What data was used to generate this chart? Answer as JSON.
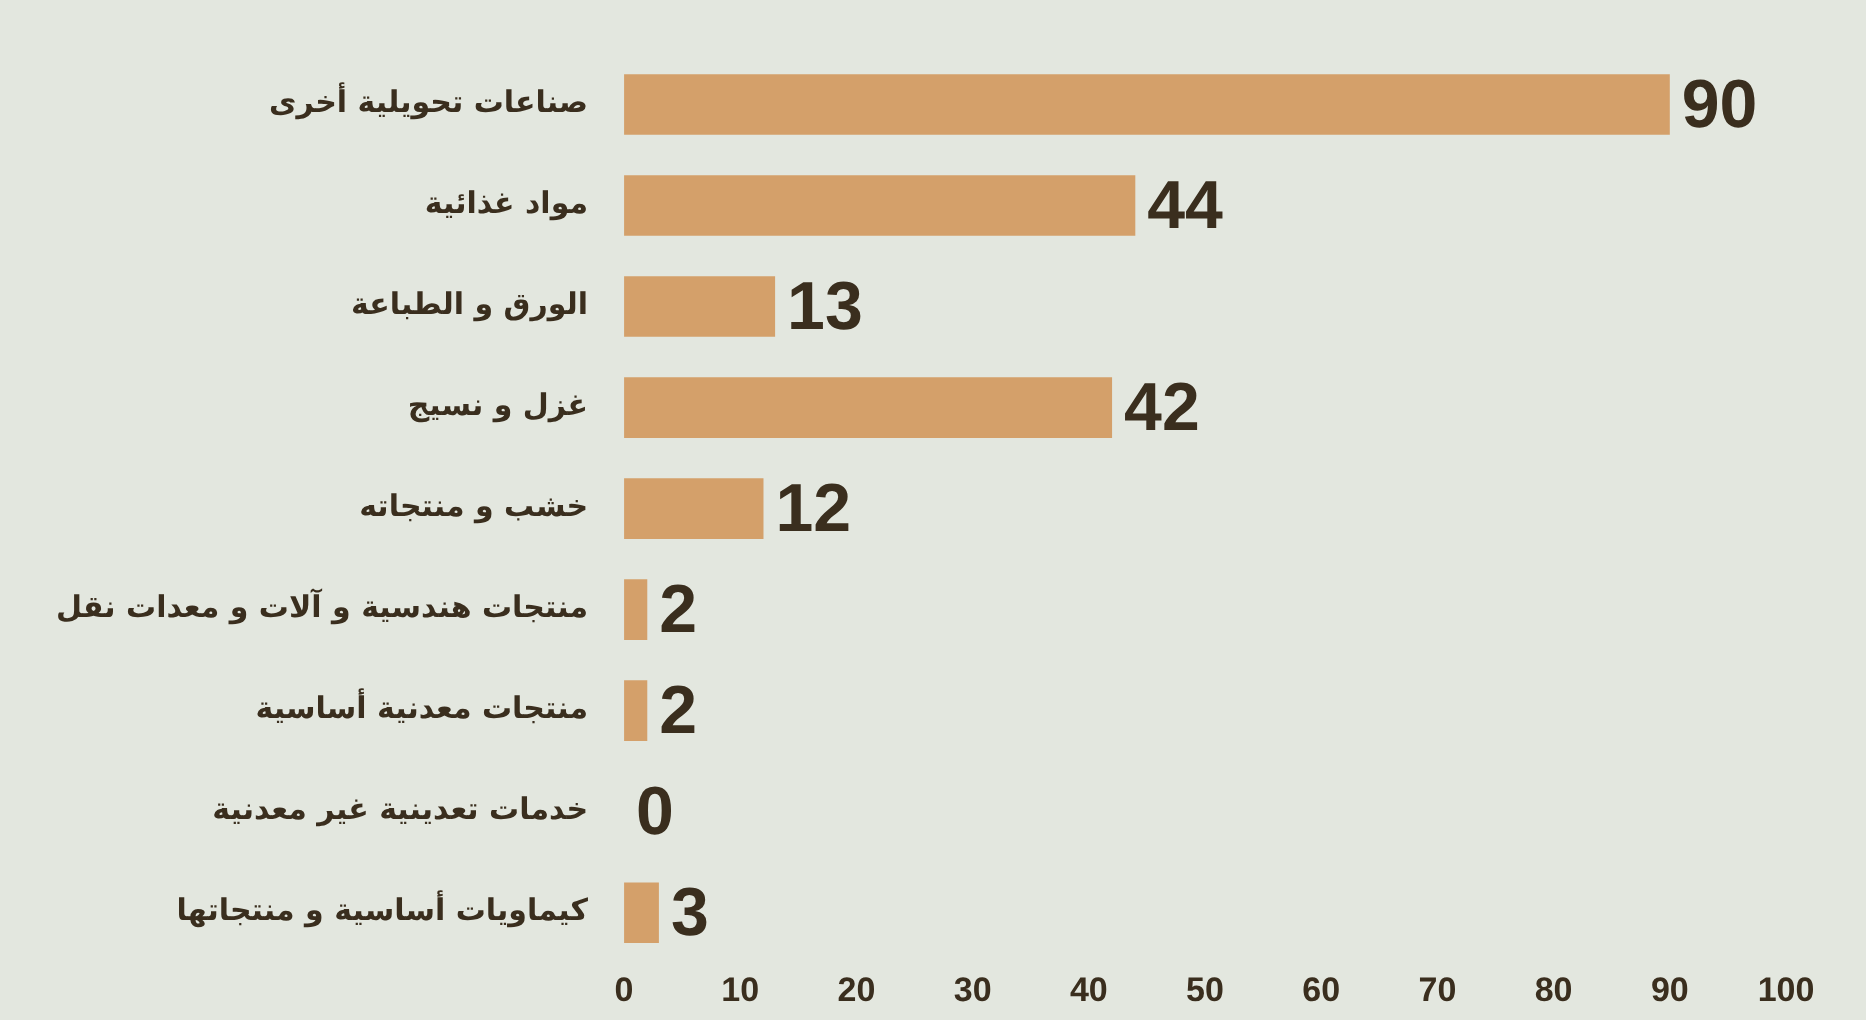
{
  "chart_data": {
    "type": "bar",
    "orientation": "horizontal",
    "categories": [
      "صناعات تحويلية أخرى",
      "مواد غذائية",
      "الورق و الطباعة",
      "غزل و نسيج",
      "خشب و منتجاته",
      "منتجات هندسية و آلات و معدات نقل",
      "منتجات معدنية أساسية",
      "خدمات تعدينية غير معدنية",
      "كيماويات أساسية و منتجاتها"
    ],
    "values": [
      90,
      44,
      13,
      42,
      12,
      2,
      2,
      0,
      3
    ],
    "color": "#d4a06a",
    "xlim": [
      0,
      100
    ],
    "xticks": [
      0,
      10,
      20,
      30,
      40,
      50,
      60,
      70,
      80,
      90,
      100
    ],
    "grid": false,
    "legend": false,
    "data_labels": true
  }
}
